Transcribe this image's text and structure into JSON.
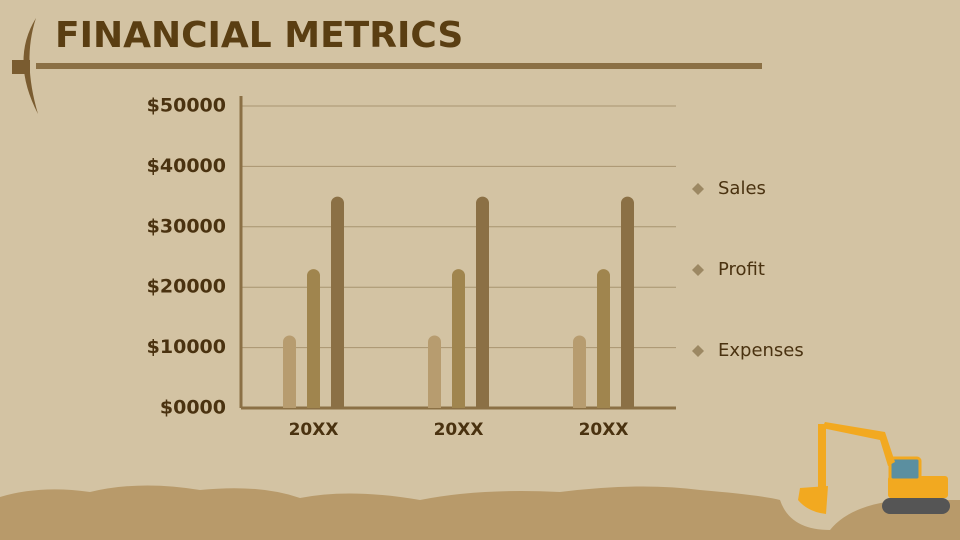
{
  "chart_data": {
    "type": "bar",
    "title": "FINANCIAL METRICS",
    "categories": [
      "20XX",
      "20XX",
      "20XX"
    ],
    "series": [
      {
        "name": "Sales",
        "color": "#b79c6f",
        "values": [
          12000,
          12000,
          12000
        ]
      },
      {
        "name": "Profit",
        "color": "#a0854e",
        "values": [
          23000,
          23000,
          23000
        ]
      },
      {
        "name": "Expenses",
        "color": "#8b7045",
        "values": [
          35000,
          35000,
          35000
        ]
      }
    ],
    "ylim": [
      0,
      50000
    ],
    "yticks": [
      {
        "value": 0,
        "label": "$0000"
      },
      {
        "value": 10000,
        "label": "$10000"
      },
      {
        "value": 20000,
        "label": "$20000"
      },
      {
        "value": 30000,
        "label": "$30000"
      },
      {
        "value": 40000,
        "label": "$40000"
      },
      {
        "value": 50000,
        "label": "$50000"
      }
    ],
    "grid": true,
    "legend": "right"
  }
}
